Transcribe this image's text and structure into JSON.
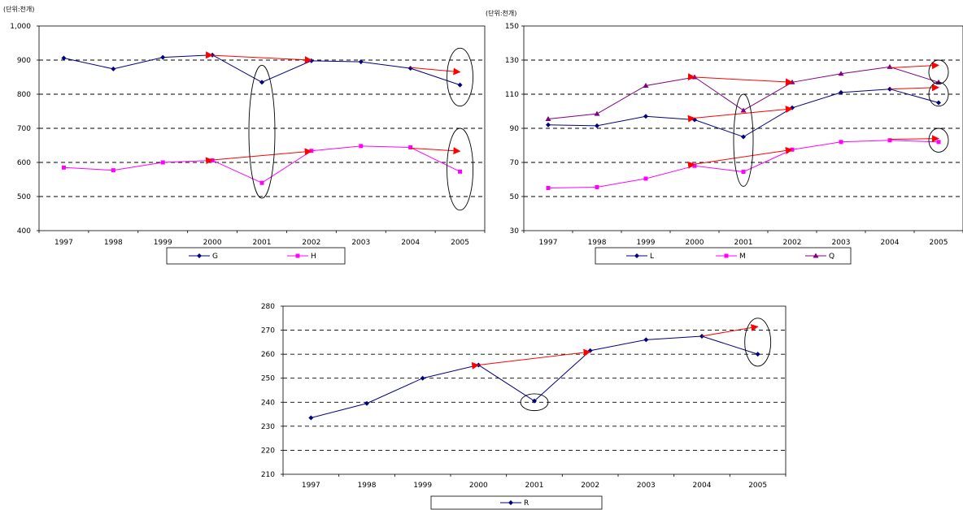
{
  "colors": {
    "navy": "#000080",
    "magenta": "#ff00ff",
    "purple": "#800080",
    "annotation": "#ff0000",
    "grid": "#000000"
  },
  "chart_data": [
    {
      "type": "line",
      "unit_label": "(단위:천개)",
      "categories": [
        "1997",
        "1998",
        "1999",
        "2000",
        "2001",
        "2002",
        "2003",
        "2004",
        "2005"
      ],
      "ylim": [
        400,
        1000
      ],
      "y_ticks": [
        "400",
        "500",
        "600",
        "700",
        "800",
        "900",
        "1,000"
      ],
      "grid": "dashed horizontal",
      "legend_position": "bottom",
      "series": [
        {
          "name": "G",
          "color": "#000080",
          "marker": "diamond",
          "values": [
            906,
            874,
            908,
            915,
            835,
            898,
            895,
            876,
            827
          ]
        },
        {
          "name": "H",
          "color": "#ff00ff",
          "marker": "square",
          "values": [
            585,
            577,
            600,
            606,
            540,
            634,
            648,
            644,
            573
          ]
        }
      ],
      "arrows": [
        {
          "from": [
            "2000",
            914
          ],
          "to": [
            "2002",
            900
          ]
        },
        {
          "from": [
            "2004",
            878
          ],
          "to": [
            "2005",
            865
          ]
        },
        {
          "from": [
            "2000",
            607
          ],
          "to": [
            "2002",
            633
          ]
        },
        {
          "from": [
            "2004",
            642
          ],
          "to": [
            "2005",
            633
          ]
        }
      ],
      "ellipses": [
        {
          "x": "2001",
          "y_center": 690,
          "y_half": 195
        },
        {
          "x": "2005",
          "y_center": 850,
          "y_half": 85
        },
        {
          "x": "2005",
          "y_center": 580,
          "y_half": 120
        }
      ]
    },
    {
      "type": "line",
      "unit_label": "(단위:천개)",
      "categories": [
        "1997",
        "1998",
        "1999",
        "2000",
        "2001",
        "2002",
        "2003",
        "2004",
        "2005"
      ],
      "ylim": [
        30,
        150
      ],
      "y_ticks": [
        "30",
        "50",
        "70",
        "90",
        "110",
        "130",
        "150"
      ],
      "grid": "dashed horizontal",
      "legend_position": "bottom",
      "series": [
        {
          "name": "L",
          "color": "#000080",
          "marker": "diamond",
          "values": [
            92,
            91.5,
            97,
            95,
            85,
            102,
            111,
            113,
            105
          ]
        },
        {
          "name": "M",
          "color": "#ff00ff",
          "marker": "square",
          "values": [
            55,
            55.5,
            60.5,
            68,
            64.5,
            77.5,
            82,
            83,
            82
          ]
        },
        {
          "name": "Q",
          "color": "#800080",
          "marker": "triangle",
          "values": [
            95.5,
            98.5,
            115,
            120,
            100.5,
            117,
            122,
            126,
            117
          ]
        }
      ],
      "arrows": [
        {
          "from": [
            "2000",
            120
          ],
          "to": [
            "2002",
            117
          ]
        },
        {
          "from": [
            "2004",
            125.5
          ],
          "to": [
            "2005",
            127
          ]
        },
        {
          "from": [
            "2000",
            96
          ],
          "to": [
            "2002",
            101.5
          ]
        },
        {
          "from": [
            "2004",
            113
          ],
          "to": [
            "2005",
            114
          ]
        },
        {
          "from": [
            "2000",
            69
          ],
          "to": [
            "2002",
            77.5
          ]
        },
        {
          "from": [
            "2004",
            83.5
          ],
          "to": [
            "2005",
            84
          ]
        }
      ],
      "ellipses": [
        {
          "x": "2001",
          "y_center": 83,
          "y_half": 27
        },
        {
          "x": "2005",
          "y_center": 123,
          "y_half": 7
        },
        {
          "x": "2005",
          "y_center": 110,
          "y_half": 7
        },
        {
          "x": "2005",
          "y_center": 83,
          "y_half": 7
        }
      ]
    },
    {
      "type": "line",
      "unit_label": "",
      "categories": [
        "1997",
        "1998",
        "1999",
        "2000",
        "2001",
        "2002",
        "2003",
        "2004",
        "2005"
      ],
      "ylim": [
        210,
        280
      ],
      "y_ticks": [
        "210",
        "220",
        "230",
        "240",
        "250",
        "260",
        "270",
        "280"
      ],
      "grid": "dashed horizontal",
      "legend_position": "bottom",
      "series": [
        {
          "name": "R",
          "color": "#000080",
          "marker": "diamond",
          "values": [
            233.5,
            239.5,
            250,
            255.5,
            240.5,
            261.5,
            266,
            267.5,
            260
          ]
        }
      ],
      "arrows": [
        {
          "from": [
            "2000",
            255.5
          ],
          "to": [
            "2002",
            261
          ]
        },
        {
          "from": [
            "2004",
            267.5
          ],
          "to": [
            "2005",
            271.5
          ]
        }
      ],
      "ellipses": [
        {
          "x": "2001",
          "y_center": 240,
          "y_half": 3.5
        },
        {
          "x": "2005",
          "y_center": 265,
          "y_half": 10
        }
      ]
    }
  ]
}
